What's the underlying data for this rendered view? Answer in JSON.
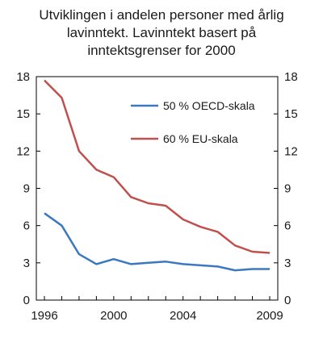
{
  "chart_data": {
    "type": "line",
    "title_lines": [
      "Utviklingen i andelen personer med årlig",
      "lavinntekt. Lavinntekt basert på",
      "inntektsgrenser for 2000"
    ],
    "xlabel": "",
    "ylabel": "",
    "xlim": [
      1996,
      2009
    ],
    "ylim": [
      0,
      18
    ],
    "yticks": [
      0,
      3,
      6,
      9,
      12,
      15,
      18
    ],
    "xtick_labels": [
      {
        "value": 1996,
        "label": "1996"
      },
      {
        "value": 2000,
        "label": "2000"
      },
      {
        "value": 2004,
        "label": "2004"
      },
      {
        "value": 2009,
        "label": "2009"
      }
    ],
    "grid": false,
    "legend_position": "top-right",
    "x": [
      1996,
      1997,
      1998,
      1999,
      2000,
      2001,
      2002,
      2003,
      2004,
      2005,
      2006,
      2007,
      2008,
      2009
    ],
    "series": [
      {
        "name": "50 % OECD-skala",
        "color": "#3a79c0",
        "values": [
          7.0,
          6.0,
          3.7,
          2.9,
          3.3,
          2.9,
          3.0,
          3.1,
          2.9,
          2.8,
          2.7,
          2.4,
          2.5,
          2.5
        ]
      },
      {
        "name": "60 % EU-skala",
        "color": "#c0504d",
        "values": [
          17.7,
          16.3,
          12.0,
          10.5,
          9.9,
          8.3,
          7.8,
          7.6,
          6.5,
          5.9,
          5.5,
          4.4,
          3.9,
          3.8
        ]
      }
    ]
  }
}
